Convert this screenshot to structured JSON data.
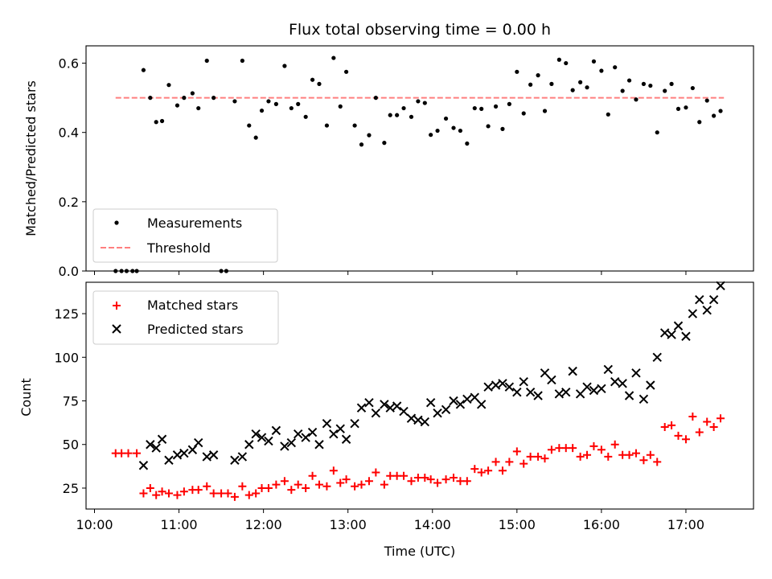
{
  "chart_data": [
    {
      "type": "scatter",
      "title": "Flux total observing time = 0.00 h",
      "xlabel": "",
      "ylabel": "Matched/Predicted stars",
      "xlim_hours": [
        9.9,
        17.8
      ],
      "ylim": [
        0,
        0.65
      ],
      "yticks": [
        "0.0",
        "0.2",
        "0.4",
        "0.6"
      ],
      "grid": false,
      "legend_position": "lower-left",
      "threshold": {
        "name": "Threshold",
        "value": 0.5,
        "x_range": [
          10.25,
          17.45
        ],
        "color": "#ff7f7f"
      },
      "series": [
        {
          "name": "Measurements",
          "marker": "dot",
          "color": "#000000",
          "points": [
            [
              10.25,
              0.0
            ],
            [
              10.32,
              0.0
            ],
            [
              10.38,
              0.0
            ],
            [
              10.45,
              0.0
            ],
            [
              10.5,
              0.0
            ],
            [
              10.58,
              0.58
            ],
            [
              10.66,
              0.5
            ],
            [
              10.73,
              0.43
            ],
            [
              10.8,
              0.433
            ],
            [
              10.88,
              0.537
            ],
            [
              10.98,
              0.478
            ],
            [
              11.06,
              0.5
            ],
            [
              11.16,
              0.513
            ],
            [
              11.23,
              0.47
            ],
            [
              11.33,
              0.607
            ],
            [
              11.41,
              0.5
            ],
            [
              11.5,
              0.0
            ],
            [
              11.56,
              0.0
            ],
            [
              11.66,
              0.49
            ],
            [
              11.75,
              0.607
            ],
            [
              11.83,
              0.42
            ],
            [
              11.91,
              0.385
            ],
            [
              11.98,
              0.463
            ],
            [
              12.06,
              0.49
            ],
            [
              12.15,
              0.482
            ],
            [
              12.25,
              0.592
            ],
            [
              12.33,
              0.47
            ],
            [
              12.41,
              0.482
            ],
            [
              12.5,
              0.445
            ],
            [
              12.58,
              0.552
            ],
            [
              12.66,
              0.54
            ],
            [
              12.75,
              0.42
            ],
            [
              12.83,
              0.615
            ],
            [
              12.91,
              0.475
            ],
            [
              12.98,
              0.575
            ],
            [
              13.08,
              0.42
            ],
            [
              13.16,
              0.365
            ],
            [
              13.25,
              0.392
            ],
            [
              13.33,
              0.5
            ],
            [
              13.43,
              0.37
            ],
            [
              13.5,
              0.45
            ],
            [
              13.58,
              0.45
            ],
            [
              13.66,
              0.47
            ],
            [
              13.75,
              0.445
            ],
            [
              13.83,
              0.49
            ],
            [
              13.91,
              0.485
            ],
            [
              13.98,
              0.393
            ],
            [
              14.06,
              0.405
            ],
            [
              14.16,
              0.44
            ],
            [
              14.25,
              0.413
            ],
            [
              14.33,
              0.405
            ],
            [
              14.41,
              0.368
            ],
            [
              14.5,
              0.47
            ],
            [
              14.58,
              0.468
            ],
            [
              14.66,
              0.418
            ],
            [
              14.75,
              0.475
            ],
            [
              14.83,
              0.41
            ],
            [
              14.91,
              0.482
            ],
            [
              15.0,
              0.575
            ],
            [
              15.08,
              0.455
            ],
            [
              15.16,
              0.538
            ],
            [
              15.25,
              0.565
            ],
            [
              15.33,
              0.462
            ],
            [
              15.41,
              0.54
            ],
            [
              15.5,
              0.61
            ],
            [
              15.58,
              0.6
            ],
            [
              15.66,
              0.522
            ],
            [
              15.75,
              0.545
            ],
            [
              15.83,
              0.53
            ],
            [
              15.91,
              0.605
            ],
            [
              16.0,
              0.578
            ],
            [
              16.08,
              0.452
            ],
            [
              16.16,
              0.588
            ],
            [
              16.25,
              0.52
            ],
            [
              16.33,
              0.55
            ],
            [
              16.41,
              0.495
            ],
            [
              16.5,
              0.54
            ],
            [
              16.58,
              0.535
            ],
            [
              16.66,
              0.4
            ],
            [
              16.75,
              0.52
            ],
            [
              16.83,
              0.54
            ],
            [
              16.91,
              0.468
            ],
            [
              17.0,
              0.472
            ],
            [
              17.08,
              0.528
            ],
            [
              17.16,
              0.43
            ],
            [
              17.25,
              0.492
            ],
            [
              17.33,
              0.448
            ],
            [
              17.41,
              0.462
            ]
          ]
        }
      ]
    },
    {
      "type": "scatter",
      "title": "",
      "xlabel": "Time (UTC)",
      "ylabel": "Count",
      "xlim_hours": [
        9.9,
        17.8
      ],
      "ylim": [
        13,
        143
      ],
      "yticks": [
        "25",
        "50",
        "75",
        "100",
        "125"
      ],
      "xticks": [
        "10:00",
        "11:00",
        "12:00",
        "13:00",
        "14:00",
        "15:00",
        "16:00",
        "17:00"
      ],
      "grid": false,
      "legend_position": "upper-left",
      "series": [
        {
          "name": "Matched stars",
          "marker": "plus",
          "color": "#ff0000",
          "points": [
            [
              10.25,
              45
            ],
            [
              10.32,
              45
            ],
            [
              10.4,
              45
            ],
            [
              10.5,
              45
            ],
            [
              10.58,
              22
            ],
            [
              10.66,
              25
            ],
            [
              10.73,
              21
            ],
            [
              10.8,
              23
            ],
            [
              10.88,
              22
            ],
            [
              10.98,
              21
            ],
            [
              11.06,
              23
            ],
            [
              11.16,
              24
            ],
            [
              11.23,
              24
            ],
            [
              11.33,
              26
            ],
            [
              11.41,
              22
            ],
            [
              11.5,
              22
            ],
            [
              11.58,
              22
            ],
            [
              11.66,
              20
            ],
            [
              11.75,
              26
            ],
            [
              11.83,
              21
            ],
            [
              11.91,
              22
            ],
            [
              11.98,
              25
            ],
            [
              12.06,
              25
            ],
            [
              12.15,
              27
            ],
            [
              12.25,
              29
            ],
            [
              12.33,
              24
            ],
            [
              12.41,
              27
            ],
            [
              12.5,
              25
            ],
            [
              12.58,
              32
            ],
            [
              12.66,
              27
            ],
            [
              12.75,
              26
            ],
            [
              12.83,
              35
            ],
            [
              12.91,
              28
            ],
            [
              12.98,
              30
            ],
            [
              13.08,
              26
            ],
            [
              13.16,
              27
            ],
            [
              13.25,
              29
            ],
            [
              13.33,
              34
            ],
            [
              13.43,
              27
            ],
            [
              13.5,
              32
            ],
            [
              13.58,
              32
            ],
            [
              13.66,
              32
            ],
            [
              13.75,
              29
            ],
            [
              13.83,
              31
            ],
            [
              13.91,
              31
            ],
            [
              13.98,
              30
            ],
            [
              14.06,
              28
            ],
            [
              14.16,
              30
            ],
            [
              14.25,
              31
            ],
            [
              14.33,
              29
            ],
            [
              14.41,
              29
            ],
            [
              14.5,
              36
            ],
            [
              14.58,
              34
            ],
            [
              14.66,
              35
            ],
            [
              14.75,
              40
            ],
            [
              14.83,
              35
            ],
            [
              14.91,
              40
            ],
            [
              15.0,
              46
            ],
            [
              15.08,
              39
            ],
            [
              15.16,
              43
            ],
            [
              15.25,
              43
            ],
            [
              15.33,
              42
            ],
            [
              15.41,
              47
            ],
            [
              15.5,
              48
            ],
            [
              15.58,
              48
            ],
            [
              15.66,
              48
            ],
            [
              15.75,
              43
            ],
            [
              15.83,
              44
            ],
            [
              15.91,
              49
            ],
            [
              16.0,
              47
            ],
            [
              16.08,
              43
            ],
            [
              16.16,
              50
            ],
            [
              16.25,
              44
            ],
            [
              16.33,
              44
            ],
            [
              16.41,
              45
            ],
            [
              16.5,
              41
            ],
            [
              16.58,
              44
            ],
            [
              16.66,
              40
            ],
            [
              16.75,
              60
            ],
            [
              16.83,
              61
            ],
            [
              16.91,
              55
            ],
            [
              17.0,
              53
            ],
            [
              17.08,
              66
            ],
            [
              17.16,
              57
            ],
            [
              17.25,
              63
            ],
            [
              17.33,
              60
            ],
            [
              17.41,
              65
            ]
          ]
        },
        {
          "name": "Predicted stars",
          "marker": "x",
          "color": "#000000",
          "points": [
            [
              10.58,
              38
            ],
            [
              10.66,
              50
            ],
            [
              10.73,
              48
            ],
            [
              10.8,
              53
            ],
            [
              10.88,
              41
            ],
            [
              10.98,
              44
            ],
            [
              11.06,
              45
            ],
            [
              11.16,
              47
            ],
            [
              11.23,
              51
            ],
            [
              11.33,
              43
            ],
            [
              11.41,
              44
            ],
            [
              11.66,
              41
            ],
            [
              11.75,
              43
            ],
            [
              11.83,
              50
            ],
            [
              11.91,
              56
            ],
            [
              11.98,
              54
            ],
            [
              12.06,
              52
            ],
            [
              12.15,
              58
            ],
            [
              12.25,
              49
            ],
            [
              12.33,
              51
            ],
            [
              12.41,
              56
            ],
            [
              12.5,
              54
            ],
            [
              12.58,
              57
            ],
            [
              12.66,
              50
            ],
            [
              12.75,
              62
            ],
            [
              12.83,
              56
            ],
            [
              12.91,
              59
            ],
            [
              12.98,
              53
            ],
            [
              13.08,
              62
            ],
            [
              13.16,
              71
            ],
            [
              13.25,
              74
            ],
            [
              13.33,
              68
            ],
            [
              13.43,
              73
            ],
            [
              13.5,
              71
            ],
            [
              13.58,
              72
            ],
            [
              13.66,
              69
            ],
            [
              13.75,
              65
            ],
            [
              13.83,
              64
            ],
            [
              13.91,
              63
            ],
            [
              13.98,
              74
            ],
            [
              14.06,
              68
            ],
            [
              14.16,
              70
            ],
            [
              14.25,
              75
            ],
            [
              14.33,
              73
            ],
            [
              14.41,
              76
            ],
            [
              14.5,
              77
            ],
            [
              14.58,
              73
            ],
            [
              14.66,
              83
            ],
            [
              14.75,
              84
            ],
            [
              14.83,
              85
            ],
            [
              14.91,
              83
            ],
            [
              15.0,
              80
            ],
            [
              15.08,
              86
            ],
            [
              15.16,
              80
            ],
            [
              15.25,
              78
            ],
            [
              15.33,
              91
            ],
            [
              15.41,
              87
            ],
            [
              15.5,
              79
            ],
            [
              15.58,
              80
            ],
            [
              15.66,
              92
            ],
            [
              15.75,
              79
            ],
            [
              15.83,
              83
            ],
            [
              15.91,
              81
            ],
            [
              16.0,
              82
            ],
            [
              16.08,
              93
            ],
            [
              16.16,
              86
            ],
            [
              16.25,
              85
            ],
            [
              16.33,
              78
            ],
            [
              16.41,
              91
            ],
            [
              16.5,
              76
            ],
            [
              16.58,
              84
            ],
            [
              16.66,
              100
            ],
            [
              16.75,
              114
            ],
            [
              16.83,
              113
            ],
            [
              16.91,
              118
            ],
            [
              17.0,
              112
            ],
            [
              17.08,
              125
            ],
            [
              17.16,
              133
            ],
            [
              17.25,
              127
            ],
            [
              17.33,
              133
            ],
            [
              17.41,
              141
            ]
          ]
        }
      ]
    }
  ]
}
